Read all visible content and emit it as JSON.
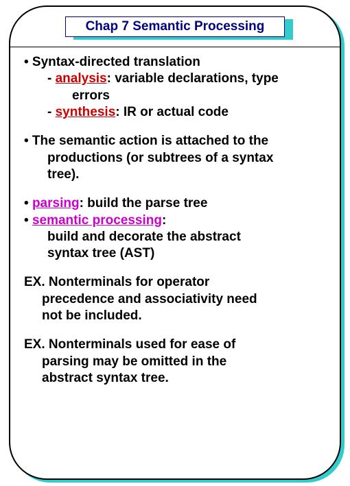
{
  "colors": {
    "shadow": "#33cccc",
    "title_text": "#000080",
    "red": "#cc0000",
    "magenta": "#cc00cc",
    "black": "#000000",
    "bg": "#ffffff"
  },
  "typography": {
    "title_fontsize": 19,
    "body_fontsize": 19,
    "weight": "bold",
    "family": "Arial"
  },
  "title": "Chap 7  Semantic Processing",
  "p1": {
    "l1a": "• Syntax-directed translation",
    "l2_dash": "- ",
    "l2_kw": "analysis",
    "l2_rest": ": variable declarations, type",
    "l3": "errors",
    "l4_dash": "- ",
    "l4_kw": "synthesis",
    "l4_rest": ": IR or actual code"
  },
  "p2": {
    "l1": "• The semantic action is attached to the",
    "l2": "productions (or subtrees of a syntax",
    "l3": "tree)."
  },
  "p3": {
    "l1_bullet": "• ",
    "l1_kw": "parsing",
    "l1_rest": ": build the parse tree",
    "l2_bullet": "• ",
    "l2_kw": "semantic processing",
    "l2_rest": ":",
    "l3": "build and decorate the abstract",
    "l4": "syntax tree (AST)"
  },
  "p4": {
    "l1": "EX.  Nonterminals for operator",
    "l2": "precedence and associativity need",
    "l3": "not be included."
  },
  "p5": {
    "l1": "EX.  Nonterminals used for ease of",
    "l2": "parsing may be omitted in the",
    "l3": "abstract syntax tree."
  }
}
